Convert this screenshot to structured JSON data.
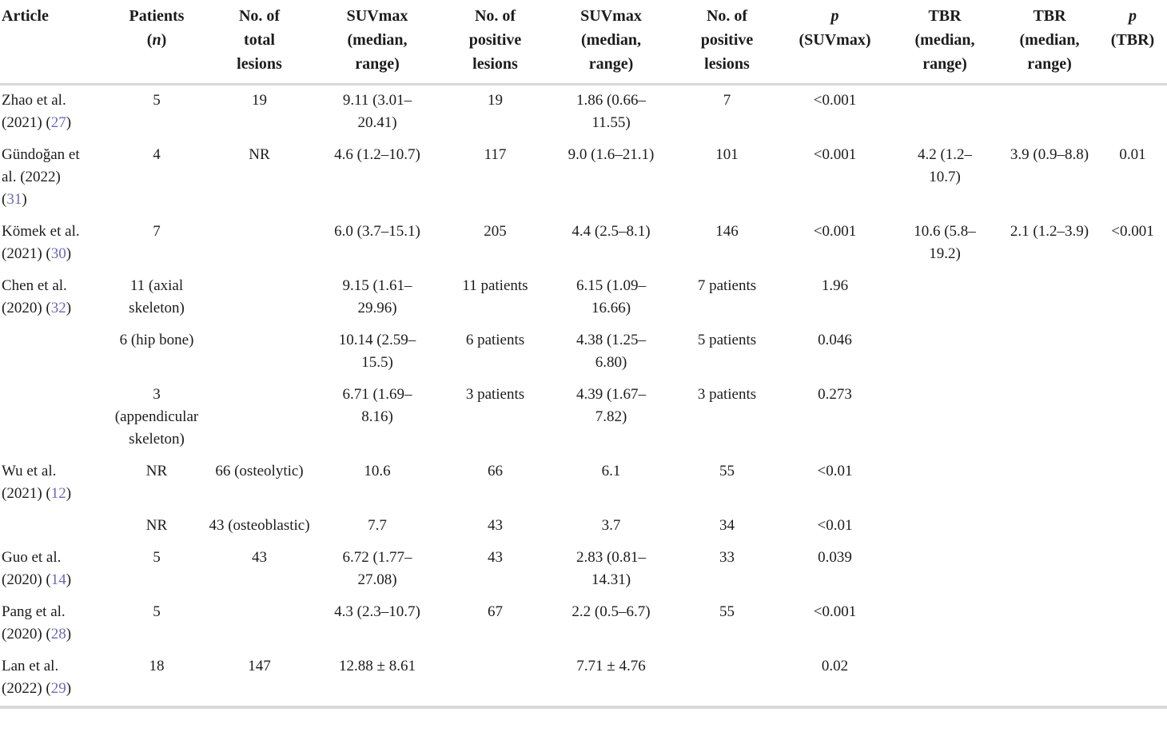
{
  "colors": {
    "text": "#1c1c1c",
    "reference_link": "#6b69b7",
    "rule": "#d9d9d9"
  },
  "table": {
    "columns": [
      {
        "id": "article",
        "align": "left",
        "lines": [
          [
            {
              "t": "Article"
            }
          ]
        ]
      },
      {
        "id": "patients",
        "align": "center",
        "lines": [
          [
            {
              "t": "Patients"
            }
          ],
          [
            {
              "t": "("
            },
            {
              "t": "n",
              "i": true
            },
            {
              "t": ")"
            }
          ]
        ]
      },
      {
        "id": "total_lesions",
        "align": "center",
        "lines": [
          [
            {
              "t": "No. of"
            }
          ],
          [
            {
              "t": "total"
            }
          ],
          [
            {
              "t": "lesions"
            }
          ]
        ]
      },
      {
        "id": "suvmax_1",
        "align": "center",
        "lines": [
          [
            {
              "t": "SUVmax"
            }
          ],
          [
            {
              "t": "(median,"
            }
          ],
          [
            {
              "t": "range)"
            }
          ]
        ]
      },
      {
        "id": "positive_1",
        "align": "center",
        "lines": [
          [
            {
              "t": "No. of"
            }
          ],
          [
            {
              "t": "positive"
            }
          ],
          [
            {
              "t": "lesions"
            }
          ]
        ]
      },
      {
        "id": "suvmax_2",
        "align": "center",
        "lines": [
          [
            {
              "t": "SUVmax"
            }
          ],
          [
            {
              "t": "(median,"
            }
          ],
          [
            {
              "t": "range)"
            }
          ]
        ]
      },
      {
        "id": "positive_2",
        "align": "center",
        "lines": [
          [
            {
              "t": "No. of"
            }
          ],
          [
            {
              "t": "positive"
            }
          ],
          [
            {
              "t": "lesions"
            }
          ]
        ]
      },
      {
        "id": "p_suvmax",
        "align": "center",
        "lines": [
          [
            {
              "t": "p",
              "i": true
            }
          ],
          [
            {
              "t": "(SUVmax)"
            }
          ]
        ]
      },
      {
        "id": "tbr_1",
        "align": "center",
        "lines": [
          [
            {
              "t": "TBR"
            }
          ],
          [
            {
              "t": "(median,"
            }
          ],
          [
            {
              "t": "range)"
            }
          ]
        ]
      },
      {
        "id": "tbr_2",
        "align": "center",
        "lines": [
          [
            {
              "t": "TBR"
            }
          ],
          [
            {
              "t": "(median,"
            }
          ],
          [
            {
              "t": "range)"
            }
          ]
        ]
      },
      {
        "id": "p_tbr",
        "align": "center",
        "lines": [
          [
            {
              "t": "p",
              "i": true
            }
          ],
          [
            {
              "t": "(TBR)"
            }
          ]
        ]
      }
    ],
    "rows": [
      {
        "article": "Zhao et al. (2021)",
        "ref": "27",
        "patients": "5",
        "total_lesions": "19",
        "suvmax_1": "9.11 (3.01–20.41)",
        "positive_1": "19",
        "suvmax_2": "1.86 (0.66–11.55)",
        "positive_2": "7",
        "p_suvmax": "<0.001",
        "tbr_1": "",
        "tbr_2": "",
        "p_tbr": ""
      },
      {
        "article": "Gündoğan et al. (2022)",
        "ref": "31",
        "patients": "4",
        "total_lesions": "NR",
        "suvmax_1": "4.6 (1.2–10.7)",
        "positive_1": "117",
        "suvmax_2": "9.0 (1.6–21.1)",
        "positive_2": "101",
        "p_suvmax": "<0.001",
        "tbr_1": "4.2 (1.2–10.7)",
        "tbr_2": "3.9 (0.9–8.8)",
        "p_tbr": "0.01"
      },
      {
        "article": "Kömek et al. (2021)",
        "ref": "30",
        "patients": "7",
        "total_lesions": "",
        "suvmax_1": "6.0 (3.7–15.1)",
        "positive_1": "205",
        "suvmax_2": "4.4 (2.5–8.1)",
        "positive_2": "146",
        "p_suvmax": "<0.001",
        "tbr_1": "10.6 (5.8–19.2)",
        "tbr_2": "2.1 (1.2–3.9)",
        "p_tbr": "<0.001"
      },
      {
        "article": "Chen et al. (2020)",
        "ref": "32",
        "patients": "11 (axial skeleton)",
        "total_lesions": "",
        "suvmax_1": "9.15 (1.61–29.96)",
        "positive_1": "11 patients",
        "suvmax_2": "6.15 (1.09–16.66)",
        "positive_2": "7 patients",
        "p_suvmax": "1.96",
        "tbr_1": "",
        "tbr_2": "",
        "p_tbr": ""
      },
      {
        "article": "",
        "ref": "",
        "patients": "6 (hip bone)",
        "total_lesions": "",
        "suvmax_1": "10.14 (2.59–15.5)",
        "positive_1": "6 patients",
        "suvmax_2": "4.38 (1.25–6.80)",
        "positive_2": "5 patients",
        "p_suvmax": "0.046",
        "tbr_1": "",
        "tbr_2": "",
        "p_tbr": ""
      },
      {
        "article": "",
        "ref": "",
        "patients": "3 (appendicular skeleton)",
        "total_lesions": "",
        "suvmax_1": "6.71 (1.69–8.16)",
        "positive_1": "3 patients",
        "suvmax_2": "4.39 (1.67–7.82)",
        "positive_2": "3 patients",
        "p_suvmax": "0.273",
        "tbr_1": "",
        "tbr_2": "",
        "p_tbr": ""
      },
      {
        "article": "Wu et al. (2021)",
        "ref": "12",
        "patients": "NR",
        "total_lesions": "66 (osteolytic)",
        "suvmax_1": "10.6",
        "positive_1": "66",
        "suvmax_2": "6.1",
        "positive_2": "55",
        "p_suvmax": "<0.01",
        "tbr_1": "",
        "tbr_2": "",
        "p_tbr": ""
      },
      {
        "article": "",
        "ref": "",
        "patients": "NR",
        "total_lesions": "43 (osteoblastic)",
        "suvmax_1": "7.7",
        "positive_1": "43",
        "suvmax_2": "3.7",
        "positive_2": "34",
        "p_suvmax": "<0.01",
        "tbr_1": "",
        "tbr_2": "",
        "p_tbr": ""
      },
      {
        "article": "Guo et al. (2020)",
        "ref": "14",
        "patients": "5",
        "total_lesions": "43",
        "suvmax_1": "6.72 (1.77–27.08)",
        "positive_1": "43",
        "suvmax_2": "2.83 (0.81–14.31)",
        "positive_2": "33",
        "p_suvmax": "0.039",
        "tbr_1": "",
        "tbr_2": "",
        "p_tbr": ""
      },
      {
        "article": "Pang et al. (2020)",
        "ref": "28",
        "patients": "5",
        "total_lesions": "",
        "suvmax_1": "4.3 (2.3–10.7)",
        "positive_1": "67",
        "suvmax_2": "2.2 (0.5–6.7)",
        "positive_2": "55",
        "p_suvmax": "<0.001",
        "tbr_1": "",
        "tbr_2": "",
        "p_tbr": ""
      },
      {
        "article": "Lan et al. (2022)",
        "ref": "29",
        "patients": "18",
        "total_lesions": "147",
        "suvmax_1": "12.88 ± 8.61",
        "positive_1": "",
        "suvmax_2": "7.71 ± 4.76",
        "positive_2": "",
        "p_suvmax": "0.02",
        "tbr_1": "",
        "tbr_2": "",
        "p_tbr": ""
      }
    ]
  }
}
